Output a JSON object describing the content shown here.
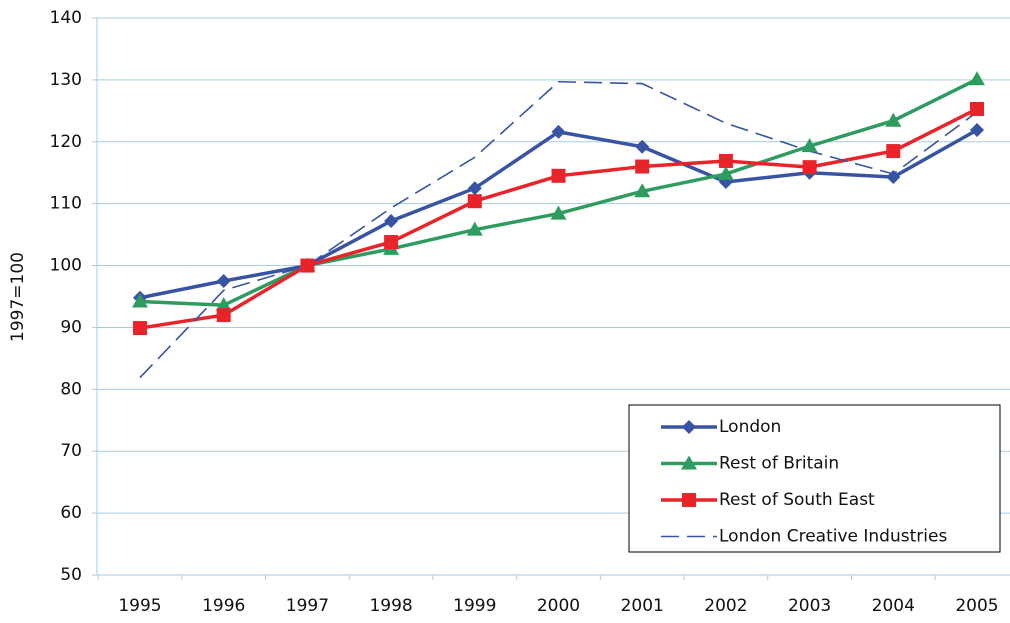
{
  "chart_data": {
    "type": "line",
    "y_label": "1997=100",
    "categories": [
      "1995",
      "1996",
      "1997",
      "1998",
      "1999",
      "2000",
      "2001",
      "2002",
      "2003",
      "2004",
      "2005"
    ],
    "ylim": [
      50,
      140
    ],
    "yticks": [
      50,
      60,
      70,
      80,
      90,
      100,
      110,
      120,
      130,
      140
    ],
    "grid": true,
    "legend": "lower right",
    "series": [
      {
        "name": "London",
        "color": "#3953a4",
        "marker": "diamond",
        "values": [
          94.8,
          97.5,
          100,
          107.2,
          112.5,
          121.6,
          119.2,
          113.5,
          115,
          114.3,
          121.9
        ]
      },
      {
        "name": "Rest of Britain",
        "color": "#2e9b5f",
        "marker": "triangle",
        "values": [
          94.2,
          93.6,
          100,
          102.7,
          105.8,
          108.4,
          112,
          114.8,
          119.3,
          123.4,
          130.1
        ]
      },
      {
        "name": "Rest of South East",
        "color": "#e8242a",
        "marker": "square",
        "values": [
          89.9,
          92,
          100,
          103.8,
          110.4,
          114.5,
          116,
          116.9,
          115.9,
          118.5,
          125.3
        ]
      },
      {
        "name": "London Creative Industries",
        "color": "#3953a4",
        "marker": "none",
        "dashed": true,
        "values": [
          81.9,
          96,
          100,
          109.3,
          117.5,
          129.7,
          129.4,
          123,
          118.5,
          114.8,
          124.8
        ]
      }
    ]
  }
}
